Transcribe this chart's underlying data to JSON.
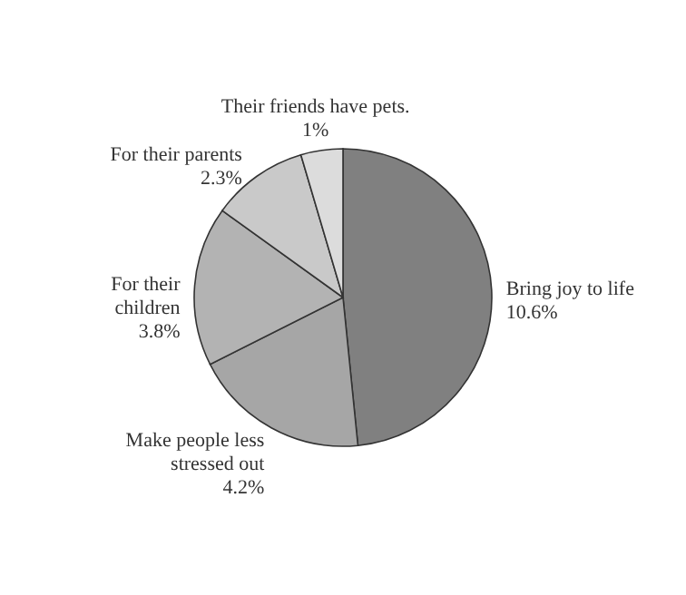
{
  "chart_data": {
    "type": "pie",
    "categories": [
      "Bring joy to life",
      "Make people less stressed out",
      "For their children",
      "For their parents",
      "Their friends have pets."
    ],
    "values": [
      10.6,
      4.2,
      3.8,
      2.3,
      1
    ],
    "value_labels": [
      "10.6%",
      "4.2%",
      "3.8%",
      "2.3%",
      "1%"
    ],
    "colors": [
      "#808080",
      "#a6a6a6",
      "#b3b3b3",
      "#c9c9c9",
      "#dcdcdc"
    ]
  }
}
